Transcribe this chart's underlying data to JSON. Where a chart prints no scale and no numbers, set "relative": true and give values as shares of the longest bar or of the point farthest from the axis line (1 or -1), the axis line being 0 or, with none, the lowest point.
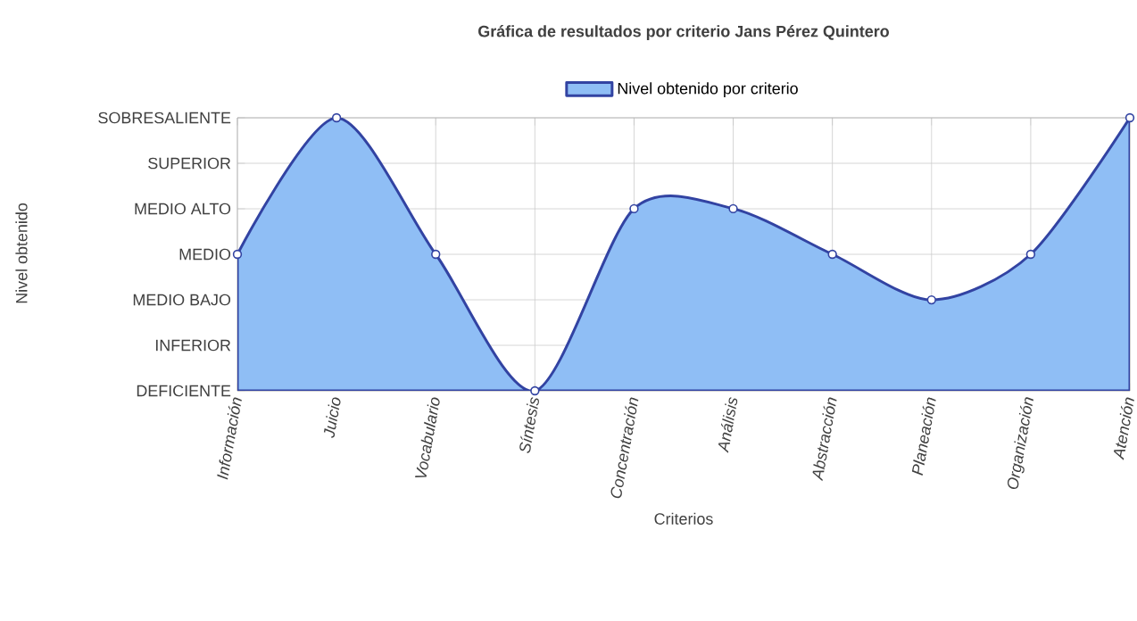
{
  "chart_data": {
    "type": "area",
    "title": "Gráfica de resultados por criterio Jans Pérez Quintero",
    "xlabel": "Criterios",
    "categories": [
      "Información",
      "Juicio",
      "Vocabulario",
      "Síntesis",
      "Concentración",
      "Análisis",
      "Abstracción",
      "Planeación",
      "Organización",
      "Atención"
    ],
    "series": [
      {
        "name": "Nivel obtenido por criterio",
        "color": "#8fbef5",
        "values": [
          0.5,
          1,
          0.5,
          0,
          0.667,
          0.667,
          0.5,
          0.333,
          0.5,
          1
        ]
      }
    ],
    "relative": true,
    "annotations": [
      "DEFICIENTE",
      "INFERIOR",
      "MEDIO BAJO",
      "MEDIO",
      "MEDIO ALTO",
      "SUPERIOR",
      "SOBRESALIENTE",
      "Nivel obtenido"
    ],
    "grid": true,
    "legend": "top",
    "marker": "circle",
    "line_style": "solid"
  }
}
